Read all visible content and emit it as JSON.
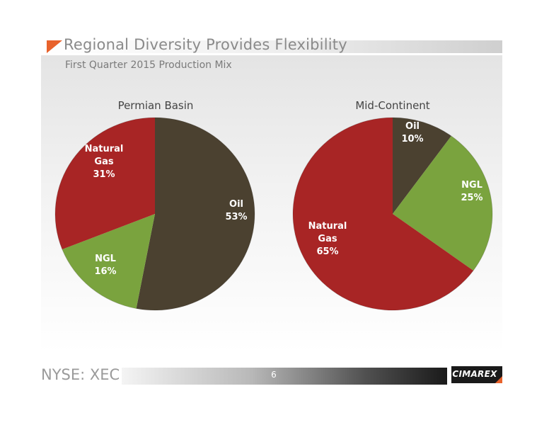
{
  "header": {
    "title": "Regional Diversity Provides Flexibility",
    "subtitle": "First Quarter 2015 Production Mix"
  },
  "colors": {
    "oil": "#4b4130",
    "ngl": "#7aa33e",
    "natural_gas": "#a82525",
    "accent": "#e8622c"
  },
  "chart_data": [
    {
      "type": "pie",
      "title": "Permian Basin",
      "slices": [
        {
          "label": "Oil",
          "value": 53,
          "value_label": "53%",
          "color": "#4b4130"
        },
        {
          "label": "NGL",
          "value": 16,
          "value_label": "16%",
          "color": "#7aa33e"
        },
        {
          "label": "Natural Gas",
          "value": 31,
          "value_label": "31%",
          "color": "#a82525"
        }
      ]
    },
    {
      "type": "pie",
      "title": "Mid-Continent",
      "slices": [
        {
          "label": "Oil",
          "value": 10,
          "value_label": "10%",
          "color": "#4b4130"
        },
        {
          "label": "NGL",
          "value": 25,
          "value_label": "25%",
          "color": "#7aa33e"
        },
        {
          "label": "Natural Gas",
          "value": 65,
          "value_label": "65%",
          "color": "#a82525"
        }
      ]
    }
  ],
  "footer": {
    "ticker": "NYSE: XEC",
    "page_number": "6",
    "logo": "CIMAREX"
  }
}
